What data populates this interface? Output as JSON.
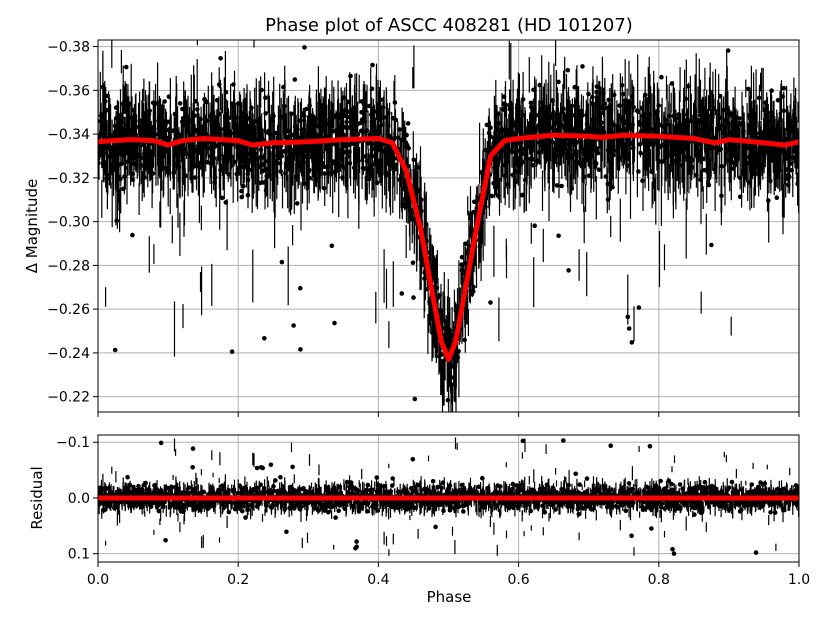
{
  "chart_data": [
    {
      "type": "scatter",
      "panel": "main",
      "title": "Phase plot of ASCC 408281 (HD 101207)",
      "xlabel": "",
      "ylabel": "Δ Magnitude",
      "xlim": [
        0.0,
        1.0
      ],
      "ylim": [
        -0.383,
        -0.213
      ],
      "y_inverted": true,
      "grid": true,
      "xticks": [
        0.0,
        0.2,
        0.4,
        0.6,
        0.8,
        1.0
      ],
      "yticks": [
        -0.38,
        -0.36,
        -0.34,
        -0.32,
        -0.3,
        -0.28,
        -0.26,
        -0.24,
        -0.22
      ],
      "ytick_labels": [
        "−0.38",
        "−0.36",
        "−0.34",
        "−0.32",
        "−0.30",
        "−0.28",
        "−0.26",
        "−0.24",
        "−0.22"
      ],
      "series": [
        {
          "kind": "errorbar-points",
          "color": "#000000",
          "baseline": -0.338,
          "scatter": 0.012,
          "eclipse_center": 0.5,
          "eclipse_depth": 0.1,
          "eclipse_width": 0.035
        },
        {
          "kind": "model-line",
          "color": "#ff0000",
          "x": [
            0.0,
            0.02,
            0.05,
            0.08,
            0.1,
            0.12,
            0.15,
            0.2,
            0.22,
            0.25,
            0.3,
            0.35,
            0.4,
            0.42,
            0.44,
            0.46,
            0.48,
            0.49,
            0.5,
            0.51,
            0.52,
            0.54,
            0.56,
            0.58,
            0.6,
            0.65,
            0.7,
            0.72,
            0.75,
            0.8,
            0.85,
            0.88,
            0.9,
            0.95,
            0.98,
            1.0
          ],
          "y": [
            -0.3365,
            -0.337,
            -0.3375,
            -0.337,
            -0.335,
            -0.337,
            -0.338,
            -0.337,
            -0.335,
            -0.336,
            -0.3365,
            -0.3375,
            -0.338,
            -0.336,
            -0.323,
            -0.297,
            -0.262,
            -0.245,
            -0.237,
            -0.245,
            -0.262,
            -0.297,
            -0.33,
            -0.337,
            -0.338,
            -0.3395,
            -0.339,
            -0.3385,
            -0.3395,
            -0.339,
            -0.338,
            -0.336,
            -0.3375,
            -0.336,
            -0.335,
            -0.3365
          ]
        }
      ]
    },
    {
      "type": "scatter",
      "panel": "residual",
      "title": "",
      "xlabel": "Phase",
      "ylabel": "Residual",
      "xlim": [
        0.0,
        1.0
      ],
      "ylim": [
        -0.113,
        0.115
      ],
      "y_inverted": true,
      "grid": true,
      "xticks": [
        0.0,
        0.2,
        0.4,
        0.6,
        0.8,
        1.0
      ],
      "xtick_labels": [
        "0.0",
        "0.2",
        "0.4",
        "0.6",
        "0.8",
        "1.0"
      ],
      "yticks": [
        -0.1,
        0.0,
        0.1
      ],
      "ytick_labels": [
        "−0.1",
        "0.0",
        "0.1"
      ],
      "series": [
        {
          "kind": "errorbar-points",
          "color": "#000000",
          "baseline": 0.0,
          "scatter": 0.012
        },
        {
          "kind": "zero-line",
          "color": "#ff0000",
          "x": [
            0.0,
            1.0
          ],
          "y": [
            0.0,
            0.0
          ]
        }
      ]
    }
  ]
}
